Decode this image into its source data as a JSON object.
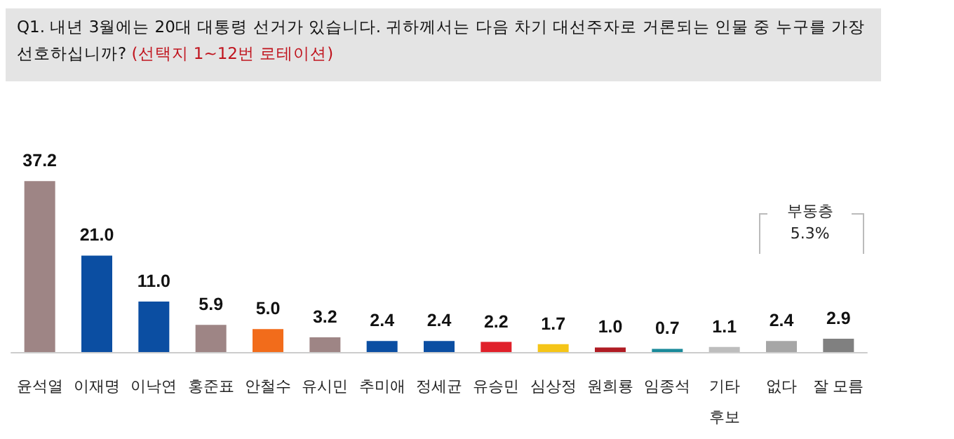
{
  "chart_data": {
    "type": "bar",
    "title": "Q1. 내년 3월에는 20대 대통령 선거가 있습니다. 귀하께서는 다음 차기 대선주자로 거론되는 인물 중 누구를 가장 선호하십니까?",
    "subtitle": "(선택지 1~12번 로테이션)",
    "categories": [
      "윤석열",
      "이재명",
      "이낙연",
      "홍준표",
      "안철수",
      "유시민",
      "추미애",
      "정세균",
      "유승민",
      "심상정",
      "원희룡",
      "임종석",
      "기타\n후보",
      "없다",
      "잘 모름"
    ],
    "values": [
      37.2,
      21.0,
      11.0,
      5.9,
      5.0,
      3.2,
      2.4,
      2.4,
      2.2,
      1.7,
      1.0,
      0.7,
      1.1,
      2.4,
      2.9
    ],
    "value_labels": [
      "37.2",
      "21.0",
      "11.0",
      "5.9",
      "5.0",
      "3.2",
      "2.4",
      "2.4",
      "2.2",
      "1.7",
      "1.0",
      "0.7",
      "1.1",
      "2.4",
      "2.9"
    ],
    "colors": [
      "#9e8585",
      "#0b4ea2",
      "#0b4ea2",
      "#9e8585",
      "#f26c1b",
      "#9e8585",
      "#0b4ea2",
      "#0b4ea2",
      "#e0202a",
      "#f5c518",
      "#b01c24",
      "#1a8a9a",
      "#bdbdbd",
      "#a6a6a6",
      "#808080"
    ],
    "annotations": [
      "부동층\n5.3%"
    ]
  }
}
